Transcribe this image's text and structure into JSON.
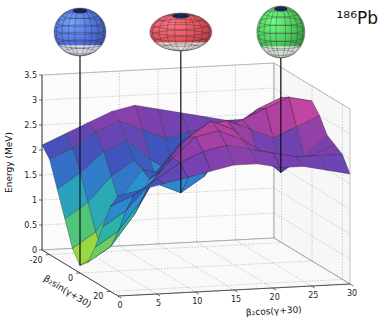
{
  "chart_data": {
    "type": "surface",
    "title": "¹⁸⁶Pb",
    "x_label": "β₂cos(γ+30)",
    "y_label": "β₂sin(γ+30)",
    "z_label": "Energy (MeV)",
    "x": [
      0,
      3,
      6,
      9,
      12,
      15,
      18,
      21,
      24,
      27,
      30
    ],
    "y": [
      -25,
      -20,
      -15,
      -10,
      -5,
      0,
      5,
      10,
      15,
      20,
      25
    ],
    "values": [
      [
        2.1,
        2.3,
        2.5,
        2.7,
        2.8,
        2.7,
        2.6,
        2.5,
        2.4,
        2.2,
        2.1
      ],
      [
        1.9,
        2.1,
        2.4,
        2.6,
        2.4,
        2.2,
        2.3,
        2.4,
        2.5,
        2.3,
        2.2
      ],
      [
        1.4,
        1.7,
        2.1,
        2.3,
        1.9,
        1.6,
        1.9,
        2.3,
        2.6,
        2.5,
        2.3
      ],
      [
        0.9,
        1.2,
        1.7,
        2.0,
        1.5,
        1.3,
        1.6,
        2.2,
        2.8,
        2.9,
        2.6
      ],
      [
        0.4,
        0.7,
        1.3,
        1.9,
        1.8,
        1.7,
        2.0,
        2.5,
        3.0,
        3.2,
        3.0
      ],
      [
        0.15,
        0.4,
        1.0,
        1.8,
        2.3,
        2.5,
        2.7,
        2.9,
        3.1,
        3.3,
        3.2
      ],
      [
        0.3,
        0.6,
        1.2,
        2.0,
        2.6,
        2.9,
        3.0,
        2.8,
        2.6,
        2.8,
        3.0
      ],
      [
        0.7,
        1.0,
        1.6,
        2.3,
        2.8,
        3.1,
        2.9,
        2.4,
        2.0,
        2.3,
        2.7
      ],
      [
        1.2,
        1.5,
        2.0,
        2.5,
        2.9,
        3.0,
        2.8,
        2.5,
        2.3,
        2.4,
        2.6
      ],
      [
        1.7,
        1.9,
        2.2,
        2.5,
        2.7,
        2.8,
        2.7,
        2.6,
        2.5,
        2.5,
        2.5
      ],
      [
        2.0,
        2.1,
        2.2,
        2.3,
        2.4,
        2.5,
        2.5,
        2.4,
        2.4,
        2.3,
        2.2
      ]
    ],
    "xlim": [
      0,
      30
    ],
    "xticks": [
      0,
      5,
      10,
      15,
      20,
      25,
      30
    ],
    "ylim": [
      -25,
      25
    ],
    "yticks": [
      -20,
      0,
      20
    ],
    "zlim": [
      0,
      3.5
    ],
    "zticks": [
      0,
      0.5,
      1,
      1.5,
      2,
      2.5,
      3,
      3.5
    ],
    "grid": true,
    "shapes": [
      {
        "color": "#4f6fdc",
        "x": 0,
        "y": 0
      },
      {
        "color": "#e0505a",
        "x": 15,
        "y": -10
      },
      {
        "color": "#4cc65a",
        "x": 24,
        "y": 10
      }
    ]
  }
}
